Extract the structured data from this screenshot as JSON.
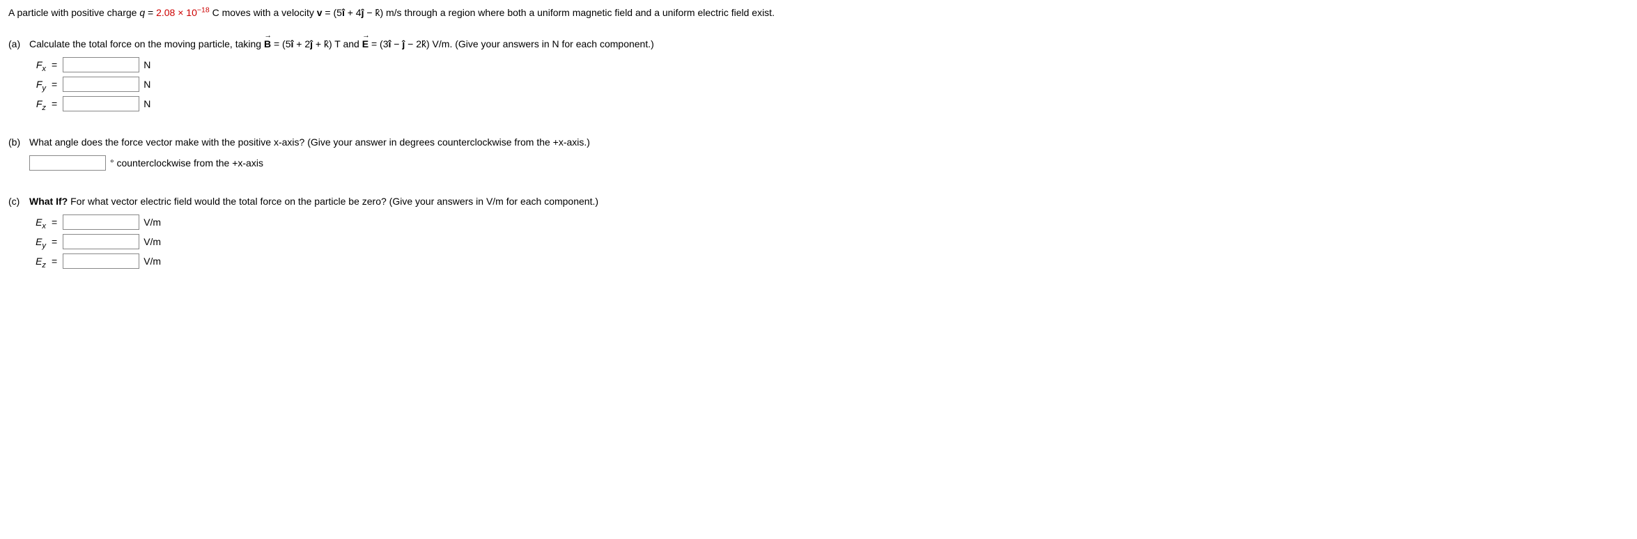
{
  "intro": {
    "prefix": "A particle with positive charge ",
    "q_sym": "q",
    "eq": " = ",
    "charge_value": "2.08 × 10",
    "charge_exp": "−18",
    "after_charge": " C moves with a velocity ",
    "v_sym": "v",
    "v_eq": " = (5",
    "ihat": "î",
    "plus4": " + 4",
    "jhat": "ĵ",
    "minus": " − ",
    "khat": "k̂",
    "v_end": ") m/s through a region where both a uniform magnetic field and a uniform electric field exist."
  },
  "parts": {
    "a": {
      "label": "(a)",
      "text_pre": "Calculate the total force on the moving particle, taking ",
      "b_sym": "B",
      "b_eq": " = (5",
      "b_i": "î",
      "b_plus2": " + 2",
      "b_j": "ĵ",
      "b_plus": " + ",
      "b_k": "k̂",
      "b_mid": ") T and ",
      "e_sym": "E",
      "e_eq": " = (3",
      "e_i": "î",
      "e_minus": " − ",
      "e_j": "ĵ",
      "e_minus2": " − 2",
      "e_k": "k̂",
      "e_end": ") V/m. (Give your answers in N for each component.)",
      "rows": [
        {
          "var": "F",
          "sub": "x",
          "unit": "N"
        },
        {
          "var": "F",
          "sub": "y",
          "unit": "N"
        },
        {
          "var": "F",
          "sub": "z",
          "unit": "N"
        }
      ]
    },
    "b": {
      "label": "(b)",
      "text": "What angle does the force vector make with the positive x-axis? (Give your answer in degrees counterclockwise from the +x-axis.)",
      "unit": "° counterclockwise from the +x-axis"
    },
    "c": {
      "label": "(c)",
      "bold": "What If?",
      "text": " For what vector electric field would the total force on the particle be zero? (Give your answers in V/m for each component.)",
      "rows": [
        {
          "var": "E",
          "sub": "x",
          "unit": "V/m"
        },
        {
          "var": "E",
          "sub": "y",
          "unit": "V/m"
        },
        {
          "var": "E",
          "sub": "z",
          "unit": "V/m"
        }
      ]
    }
  },
  "eq": "="
}
